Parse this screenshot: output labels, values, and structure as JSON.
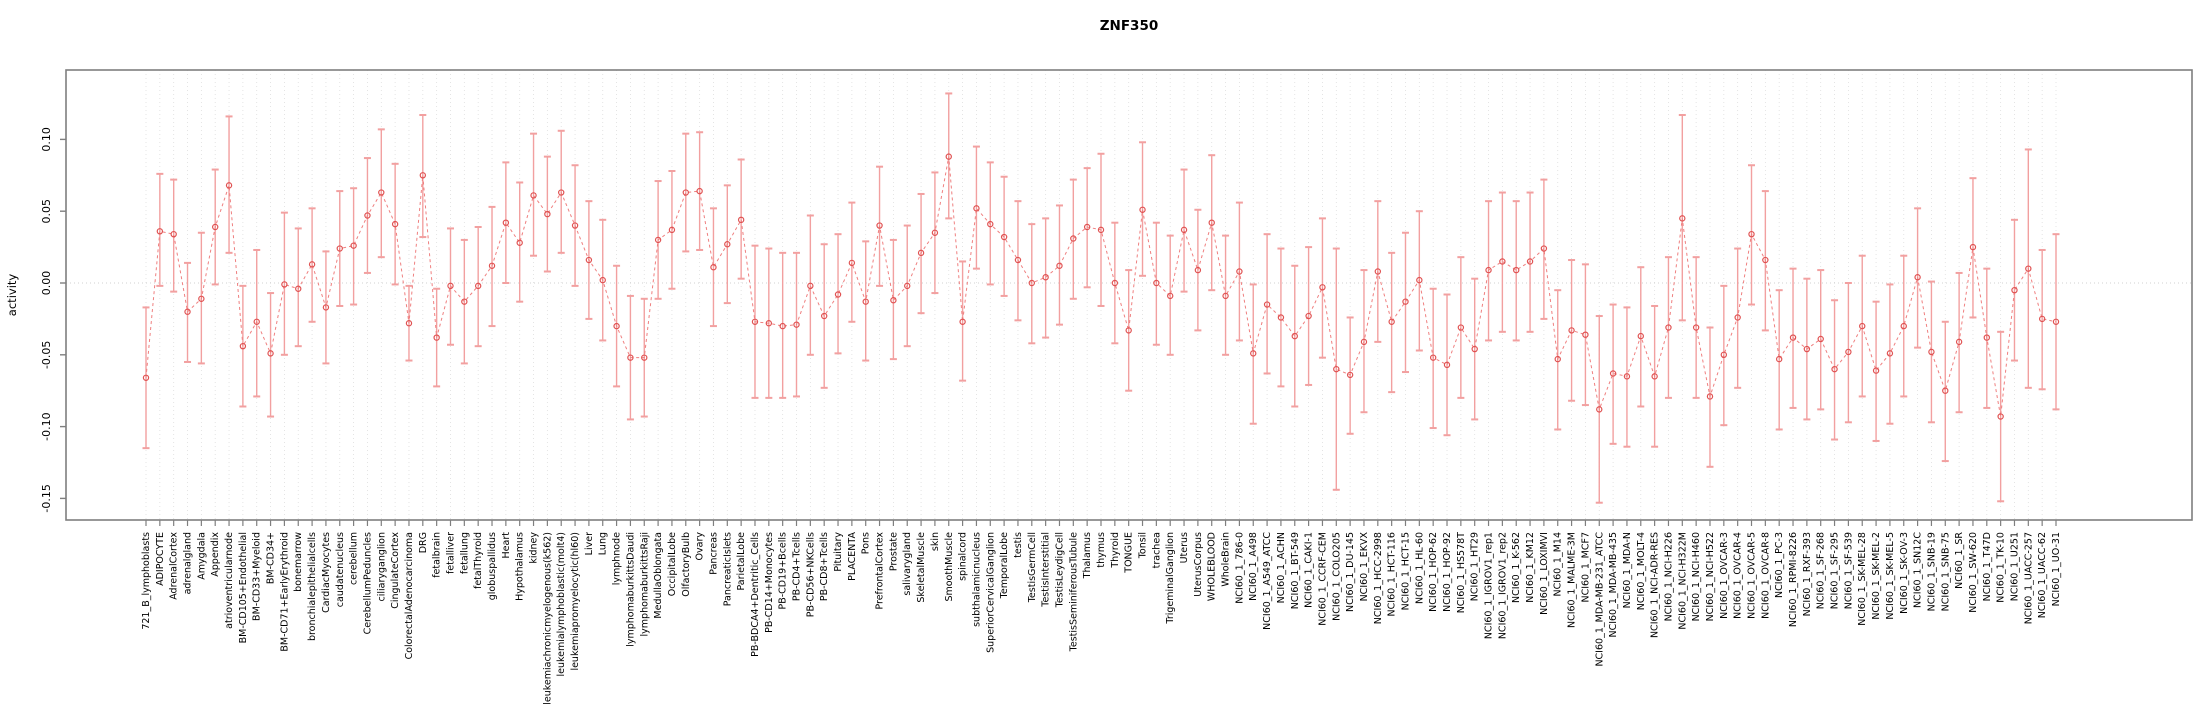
{
  "title": "ZNF350",
  "chart_data": {
    "type": "scatter",
    "title": "ZNF350",
    "xlabel": "",
    "ylabel": "activity",
    "ylim": [
      -0.165,
      0.147
    ],
    "y_ticks": [
      0.1,
      0.05,
      0.0,
      -0.05,
      -0.1,
      -0.15
    ],
    "grid": "vertical dotted gridline per category; dotted horizontal line at 0",
    "legend": "none",
    "marker": "open-circle",
    "line_style": "dashed",
    "error_bars": true,
    "colors": {
      "point": "#e05252",
      "line": "#ef7f7f",
      "error_bar": "#f2a0a0",
      "gridline": "#dedede",
      "zero_line": "#d0d0d0",
      "box": "#7f7f7f",
      "text": "#000000",
      "background": "#ffffff"
    },
    "categories": [
      "721_B_lymphoblasts",
      "ADIPOCYTE",
      "AdrenalCortex",
      "adrenalgland",
      "Amygdala",
      "Appendix",
      "atrioventricularnode",
      "BM-CD105+Endothelial",
      "BM-CD33+Myeloid",
      "BM-CD34+",
      "BM-CD71+EarlyErythroid",
      "bonemarrow",
      "bronchialepithelialcells",
      "CardiacMyocytes",
      "caudatenucleus",
      "cerebellum",
      "CerebellumPeduncles",
      "ciliaryganglion",
      "CingulateCortex",
      "ColorectalAdenocarcinoma",
      "DRG",
      "fetalbrain",
      "fetalliver",
      "fetallung",
      "fetalThyroid",
      "globuspallidus",
      "Heart",
      "Hypothalamus",
      "kidney",
      "leukemiachronicmyelogenous(k562)",
      "leukemialymphoblastic(molt4)",
      "leukemiapromyelocytic(hl60)",
      "Liver",
      "Lung",
      "lymphnode",
      "lymphomaburkittsDaudi",
      "lymphomaburkittsRaji",
      "MedullaOblongata",
      "OccipitalLobe",
      "OlfactoryBulb",
      "Ovary",
      "Pancreas",
      "PancreaticIslets",
      "ParietalLobe",
      "PB-BDCA4+Dentritic_Cells",
      "PB-CD14+Monocytes",
      "PB-CD19+Bcells",
      "PB-CD4+Tcells",
      "PB-CD56+NKCells",
      "PB-CD8+Tcells",
      "Pituitary",
      "PLACENTA",
      "Pons",
      "PrefrontalCortex",
      "Prostate",
      "salivarygland",
      "SkeletalMuscle",
      "skin",
      "SmoothMuscle",
      "spinalcord",
      "subthalamicnucleus",
      "SuperiorCervicalGanglion",
      "TemporalLobe",
      "testis",
      "TestisGermCell",
      "TestisInterstitial",
      "TestisLeydigCell",
      "TestisSeminiferousTubule",
      "Thalamus",
      "thymus",
      "Thyroid",
      "TONGUE",
      "Tonsil",
      "trachea",
      "TrigeminalGanglion",
      "Uterus",
      "UterusCorpus",
      "WHOLEBLOOD",
      "WholeBrain",
      "NCI60_1_786-0",
      "NCI60_1_A498",
      "NCI60_1_A549_ATCC",
      "NCI60_1_ACHN",
      "NCI60_1_BT-549",
      "NCI60_1_CAKI-1",
      "NCI60_1_CCRF-CEM",
      "NCI60_1_COLO205",
      "NCI60_1_DU-145",
      "NCI60_1_EKVX",
      "NCI60_1_HCC-2998",
      "NCI60_1_HCT-116",
      "NCI60_1_HCT-15",
      "NCI60_1_HL-60",
      "NCI60_1_HOP-62",
      "NCI60_1_HOP-92",
      "NCI60_1_HS578T",
      "NCI60_1_HT29",
      "NCI60_1_IGROV1_rep1",
      "NCI60_1_IGROV1_rep2",
      "NCI60_1_K-562",
      "NCI60_1_KM12",
      "NCI60_1_LOXIMVI",
      "NCI60_1_M14",
      "NCI60_1_MALME-3M",
      "NCI60_1_MCF7",
      "NCI60_1_MDA-MB-231_ATCC",
      "NCI60_1_MDA-MB-435",
      "NCI60_1_MDA-N",
      "NCI60_1_MOLT-4",
      "NCI60_1_NCI-ADR-RES",
      "NCI60_1_NCI-H226",
      "NCI60_1_NCI-H322M",
      "NCI60_1_NCI-H460",
      "NCI60_1_NCI-H522",
      "NCI60_1_OVCAR-3",
      "NCI60_1_OVCAR-4",
      "NCI60_1_OVCAR-5",
      "NCI60_1_OVCAR-8",
      "NCI60_1_PC-3",
      "NCI60_1_RPMI-8226",
      "NCI60_1_RXF-393",
      "NCI60_1_SF-268",
      "NCI60_1_SF-295",
      "NCI60_1_SF-539",
      "NCI60_1_SK-MEL-28",
      "NCI60_1_SK-MEL-2",
      "NCI60_1_SK-MEL-5",
      "NCI60_1_SK-OV-3",
      "NCI60_1_SN12C",
      "NCI60_1_SNB-19",
      "NCI60_1_SNB-75",
      "NCI60_1_SR",
      "NCI60_1_SW-620",
      "NCI60_1_T47D",
      "NCI60_1_TK-10",
      "NCI60_1_U251",
      "NCI60_1_UACC-257",
      "NCI60_1_UACC-62",
      "NCI60_1_UO-31"
    ],
    "values": [
      -0.066,
      0.036,
      0.034,
      -0.02,
      -0.011,
      0.039,
      0.068,
      -0.044,
      -0.027,
      -0.049,
      -0.001,
      -0.004,
      0.013,
      -0.017,
      0.024,
      0.026,
      0.047,
      0.063,
      0.041,
      -0.028,
      0.075,
      -0.038,
      -0.002,
      -0.013,
      -0.002,
      0.012,
      0.042,
      0.028,
      0.061,
      0.048,
      0.063,
      0.04,
      0.016,
      0.002,
      -0.03,
      -0.052,
      -0.052,
      0.03,
      0.037,
      0.063,
      0.064,
      0.011,
      0.027,
      0.044,
      -0.027,
      -0.028,
      -0.03,
      -0.029,
      -0.002,
      -0.023,
      -0.008,
      0.014,
      -0.013,
      0.04,
      -0.012,
      -0.002,
      0.021,
      0.035,
      0.088,
      -0.027,
      0.052,
      0.041,
      0.032,
      0.016,
      0.0,
      0.004,
      0.012,
      0.031,
      0.039,
      0.037,
      0.0,
      -0.033,
      0.051,
      0.0,
      -0.009,
      0.037,
      0.009,
      0.042,
      -0.009,
      0.008,
      -0.049,
      -0.015,
      -0.024,
      -0.037,
      -0.023,
      -0.003,
      -0.06,
      -0.064,
      -0.041,
      0.008,
      -0.027,
      -0.013,
      0.002,
      -0.052,
      -0.057,
      -0.031,
      -0.046,
      0.009,
      0.015,
      0.009,
      0.015,
      0.024,
      -0.053,
      -0.033,
      -0.036,
      -0.088,
      -0.063,
      -0.065,
      -0.037,
      -0.065,
      -0.031,
      0.045,
      -0.031,
      -0.079,
      -0.05,
      -0.024,
      0.034,
      0.016,
      -0.053,
      -0.038,
      -0.046,
      -0.039,
      -0.06,
      -0.048,
      -0.03,
      -0.061,
      -0.049,
      -0.03,
      0.004,
      -0.048,
      -0.075,
      -0.041,
      0.025,
      -0.038,
      -0.093,
      -0.005,
      0.01,
      -0.025,
      -0.027
    ],
    "err_lo": [
      -0.115,
      -0.002,
      -0.006,
      -0.055,
      -0.056,
      -0.001,
      0.021,
      -0.086,
      -0.079,
      -0.093,
      -0.05,
      -0.044,
      -0.027,
      -0.056,
      -0.016,
      -0.015,
      0.007,
      0.018,
      -0.001,
      -0.054,
      0.032,
      -0.072,
      -0.043,
      -0.056,
      -0.044,
      -0.03,
      0.0,
      -0.013,
      0.019,
      0.008,
      0.021,
      -0.002,
      -0.025,
      -0.04,
      -0.072,
      -0.095,
      -0.093,
      -0.011,
      -0.004,
      0.022,
      0.023,
      -0.03,
      -0.014,
      0.003,
      -0.08,
      -0.08,
      -0.08,
      -0.079,
      -0.05,
      -0.073,
      -0.049,
      -0.027,
      -0.054,
      -0.002,
      -0.053,
      -0.044,
      -0.021,
      -0.007,
      0.045,
      -0.068,
      0.01,
      -0.001,
      -0.009,
      -0.026,
      -0.042,
      -0.038,
      -0.029,
      -0.011,
      -0.003,
      -0.016,
      -0.042,
      -0.075,
      0.005,
      -0.043,
      -0.05,
      -0.006,
      -0.033,
      -0.005,
      -0.05,
      -0.04,
      -0.098,
      -0.063,
      -0.072,
      -0.086,
      -0.071,
      -0.052,
      -0.144,
      -0.105,
      -0.09,
      -0.041,
      -0.076,
      -0.062,
      -0.047,
      -0.101,
      -0.106,
      -0.08,
      -0.095,
      -0.04,
      -0.034,
      -0.04,
      -0.034,
      -0.025,
      -0.102,
      -0.082,
      -0.085,
      -0.153,
      -0.112,
      -0.114,
      -0.086,
      -0.114,
      -0.08,
      -0.026,
      -0.08,
      -0.128,
      -0.099,
      -0.073,
      -0.015,
      -0.033,
      -0.102,
      -0.087,
      -0.095,
      -0.088,
      -0.109,
      -0.097,
      -0.079,
      -0.11,
      -0.098,
      -0.079,
      -0.045,
      -0.097,
      -0.124,
      -0.09,
      -0.024,
      -0.087,
      -0.152,
      -0.054,
      -0.073,
      -0.074,
      -0.088
    ],
    "err_hi": [
      -0.017,
      0.076,
      0.072,
      0.014,
      0.035,
      0.079,
      0.116,
      -0.002,
      0.023,
      -0.007,
      0.049,
      0.038,
      0.052,
      0.022,
      0.064,
      0.066,
      0.087,
      0.107,
      0.083,
      -0.002,
      0.117,
      -0.004,
      0.038,
      0.03,
      0.039,
      0.053,
      0.084,
      0.07,
      0.104,
      0.088,
      0.106,
      0.082,
      0.057,
      0.044,
      0.012,
      -0.009,
      -0.011,
      0.071,
      0.078,
      0.104,
      0.105,
      0.052,
      0.068,
      0.086,
      0.026,
      0.024,
      0.021,
      0.021,
      0.047,
      0.027,
      0.034,
      0.056,
      0.029,
      0.081,
      0.03,
      0.04,
      0.062,
      0.077,
      0.132,
      0.015,
      0.095,
      0.084,
      0.074,
      0.057,
      0.041,
      0.045,
      0.054,
      0.072,
      0.08,
      0.09,
      0.042,
      0.009,
      0.098,
      0.042,
      0.033,
      0.079,
      0.051,
      0.089,
      0.033,
      0.056,
      -0.001,
      0.034,
      0.024,
      0.012,
      0.025,
      0.045,
      0.024,
      -0.024,
      0.009,
      0.057,
      0.021,
      0.035,
      0.05,
      -0.004,
      -0.008,
      0.018,
      0.003,
      0.057,
      0.063,
      0.057,
      0.063,
      0.072,
      -0.005,
      0.016,
      0.013,
      -0.023,
      -0.015,
      -0.017,
      0.011,
      -0.016,
      0.018,
      0.117,
      0.018,
      -0.031,
      -0.002,
      0.024,
      0.082,
      0.064,
      -0.005,
      0.01,
      0.003,
      0.009,
      -0.012,
      0.0,
      0.019,
      -0.013,
      -0.001,
      0.019,
      0.052,
      0.001,
      -0.027,
      0.007,
      0.073,
      0.01,
      -0.034,
      0.044,
      0.093,
      0.023,
      0.034
    ]
  }
}
